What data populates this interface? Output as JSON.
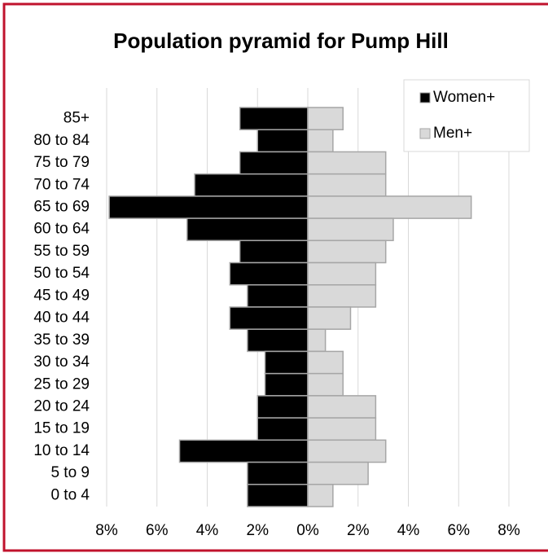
{
  "chart_data": {
    "type": "pyramid",
    "title": "Population pyramid for Pump Hill",
    "categories": [
      "85+",
      "80 to 84",
      "75 to 79",
      "70 to 74",
      "65 to 69",
      "60 to 64",
      "55 to 59",
      "50 to 54",
      "45 to 49",
      "40 to 44",
      "35 to 39",
      "30 to 34",
      "25 to 29",
      "20 to 24",
      "15 to 19",
      "10 to 14",
      "5 to 9",
      "0 to 4"
    ],
    "series": [
      {
        "name": "Women+",
        "color": "#000000",
        "values": [
          -2.7,
          -2.0,
          -2.7,
          -4.5,
          -7.9,
          -4.8,
          -2.7,
          -3.1,
          -2.4,
          -3.1,
          -2.4,
          -1.7,
          -1.7,
          -2.0,
          -2.0,
          -5.1,
          -2.4,
          -2.4
        ]
      },
      {
        "name": "Men+",
        "color": "#d9d9d9",
        "values": [
          1.4,
          1.0,
          3.1,
          3.1,
          6.5,
          3.4,
          3.1,
          2.7,
          2.7,
          1.7,
          0.7,
          1.4,
          1.4,
          2.7,
          2.7,
          3.1,
          2.4,
          1.0
        ]
      }
    ],
    "xlim": [
      -8,
      8
    ],
    "xticks": [
      {
        "value": -8,
        "label": "8%"
      },
      {
        "value": -6,
        "label": "6%"
      },
      {
        "value": -4,
        "label": "4%"
      },
      {
        "value": -2,
        "label": "2%"
      },
      {
        "value": 0,
        "label": "0%"
      },
      {
        "value": 2,
        "label": "2%"
      },
      {
        "value": 4,
        "label": "4%"
      },
      {
        "value": 6,
        "label": "6%"
      },
      {
        "value": 8,
        "label": "8%"
      }
    ],
    "grid": true,
    "legend": "top-right"
  }
}
